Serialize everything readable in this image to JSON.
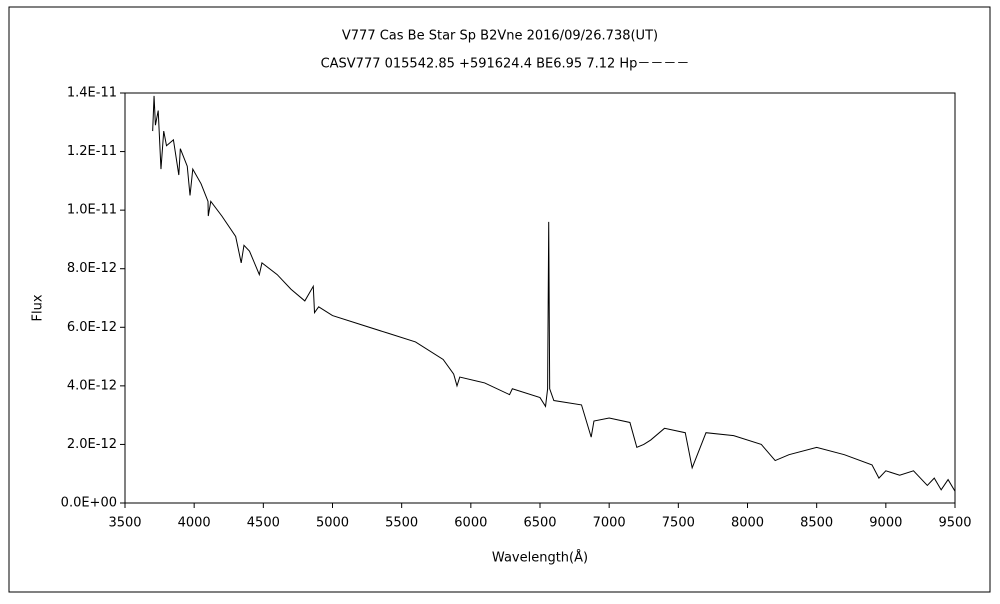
{
  "chart_data": {
    "type": "line",
    "title": "V777 Cas   Be Star   Sp B2Vne   2016/09/26.738(UT)",
    "subtitle": "CASV777 015542.85 +591624.4 BE6.95 7.12 Hp－－－－",
    "x_label": "Wavelength(Å)",
    "y_label": "Flux",
    "xlim": [
      3500,
      9500
    ],
    "xticks": [
      3500,
      4000,
      4500,
      5000,
      5500,
      6000,
      6500,
      7000,
      7500,
      8000,
      8500,
      9000,
      9500
    ],
    "ylim": [
      0,
      1.4e-11
    ],
    "yticks": [
      {
        "value": 0,
        "label": "0.0E+00"
      },
      {
        "value": 2e-12,
        "label": "2.0E-12"
      },
      {
        "value": 4e-12,
        "label": "4.0E-12"
      },
      {
        "value": 6e-12,
        "label": "6.0E-12"
      },
      {
        "value": 8e-12,
        "label": "8.0E-12"
      },
      {
        "value": 1e-11,
        "label": "1.0E-11"
      },
      {
        "value": 1.2e-11,
        "label": "1.2E-11"
      },
      {
        "value": 1.4e-11,
        "label": "1.4E-11"
      }
    ],
    "series": [
      {
        "color": "#000000",
        "x": [
          3700,
          3710,
          3720,
          3740,
          3760,
          3780,
          3800,
          3850,
          3889,
          3900,
          3950,
          3970,
          3990,
          4050,
          4100,
          4102,
          4120,
          4200,
          4300,
          4340,
          4360,
          4400,
          4471,
          4490,
          4600,
          4700,
          4800,
          4861,
          4870,
          4900,
          5000,
          5200,
          5400,
          5600,
          5800,
          5876,
          5900,
          5920,
          6100,
          6280,
          6300,
          6500,
          6540,
          6555,
          6563,
          6570,
          6600,
          6800,
          6870,
          6890,
          7000,
          7150,
          7200,
          7250,
          7300,
          7400,
          7550,
          7600,
          7650,
          7700,
          7900,
          8100,
          8200,
          8300,
          8500,
          8700,
          8900,
          8950,
          9000,
          9100,
          9200,
          9300,
          9350,
          9400,
          9450,
          9500
        ],
        "values": [
          1.27e-11,
          1.39e-11,
          1.29e-11,
          1.34e-11,
          1.14e-11,
          1.27e-11,
          1.22e-11,
          1.24e-11,
          1.12e-11,
          1.21e-11,
          1.15e-11,
          1.05e-11,
          1.14e-11,
          1.09e-11,
          1.03e-11,
          9.8e-12,
          1.03e-11,
          9.8e-12,
          9.1e-12,
          8.2e-12,
          8.8e-12,
          8.6e-12,
          7.8e-12,
          8.2e-12,
          7.8e-12,
          7.3e-12,
          6.9e-12,
          7.4e-12,
          6.5e-12,
          6.7e-12,
          6.4e-12,
          6.1e-12,
          5.8e-12,
          5.5e-12,
          4.9e-12,
          4.4e-12,
          4e-12,
          4.3e-12,
          4.1e-12,
          3.7e-12,
          3.9e-12,
          3.6e-12,
          3.3e-12,
          3.9e-12,
          9.6e-12,
          3.9e-12,
          3.5e-12,
          3.35e-12,
          2.25e-12,
          2.8e-12,
          2.9e-12,
          2.75e-12,
          1.9e-12,
          2e-12,
          2.15e-12,
          2.55e-12,
          2.4e-12,
          1.2e-12,
          1.8e-12,
          2.4e-12,
          2.3e-12,
          2e-12,
          1.45e-12,
          1.65e-12,
          1.9e-12,
          1.65e-12,
          1.3e-12,
          8.5e-13,
          1.1e-12,
          9.5e-13,
          1.1e-12,
          6e-13,
          8.5e-13,
          4.5e-13,
          8e-13,
          4e-13
        ]
      }
    ]
  }
}
